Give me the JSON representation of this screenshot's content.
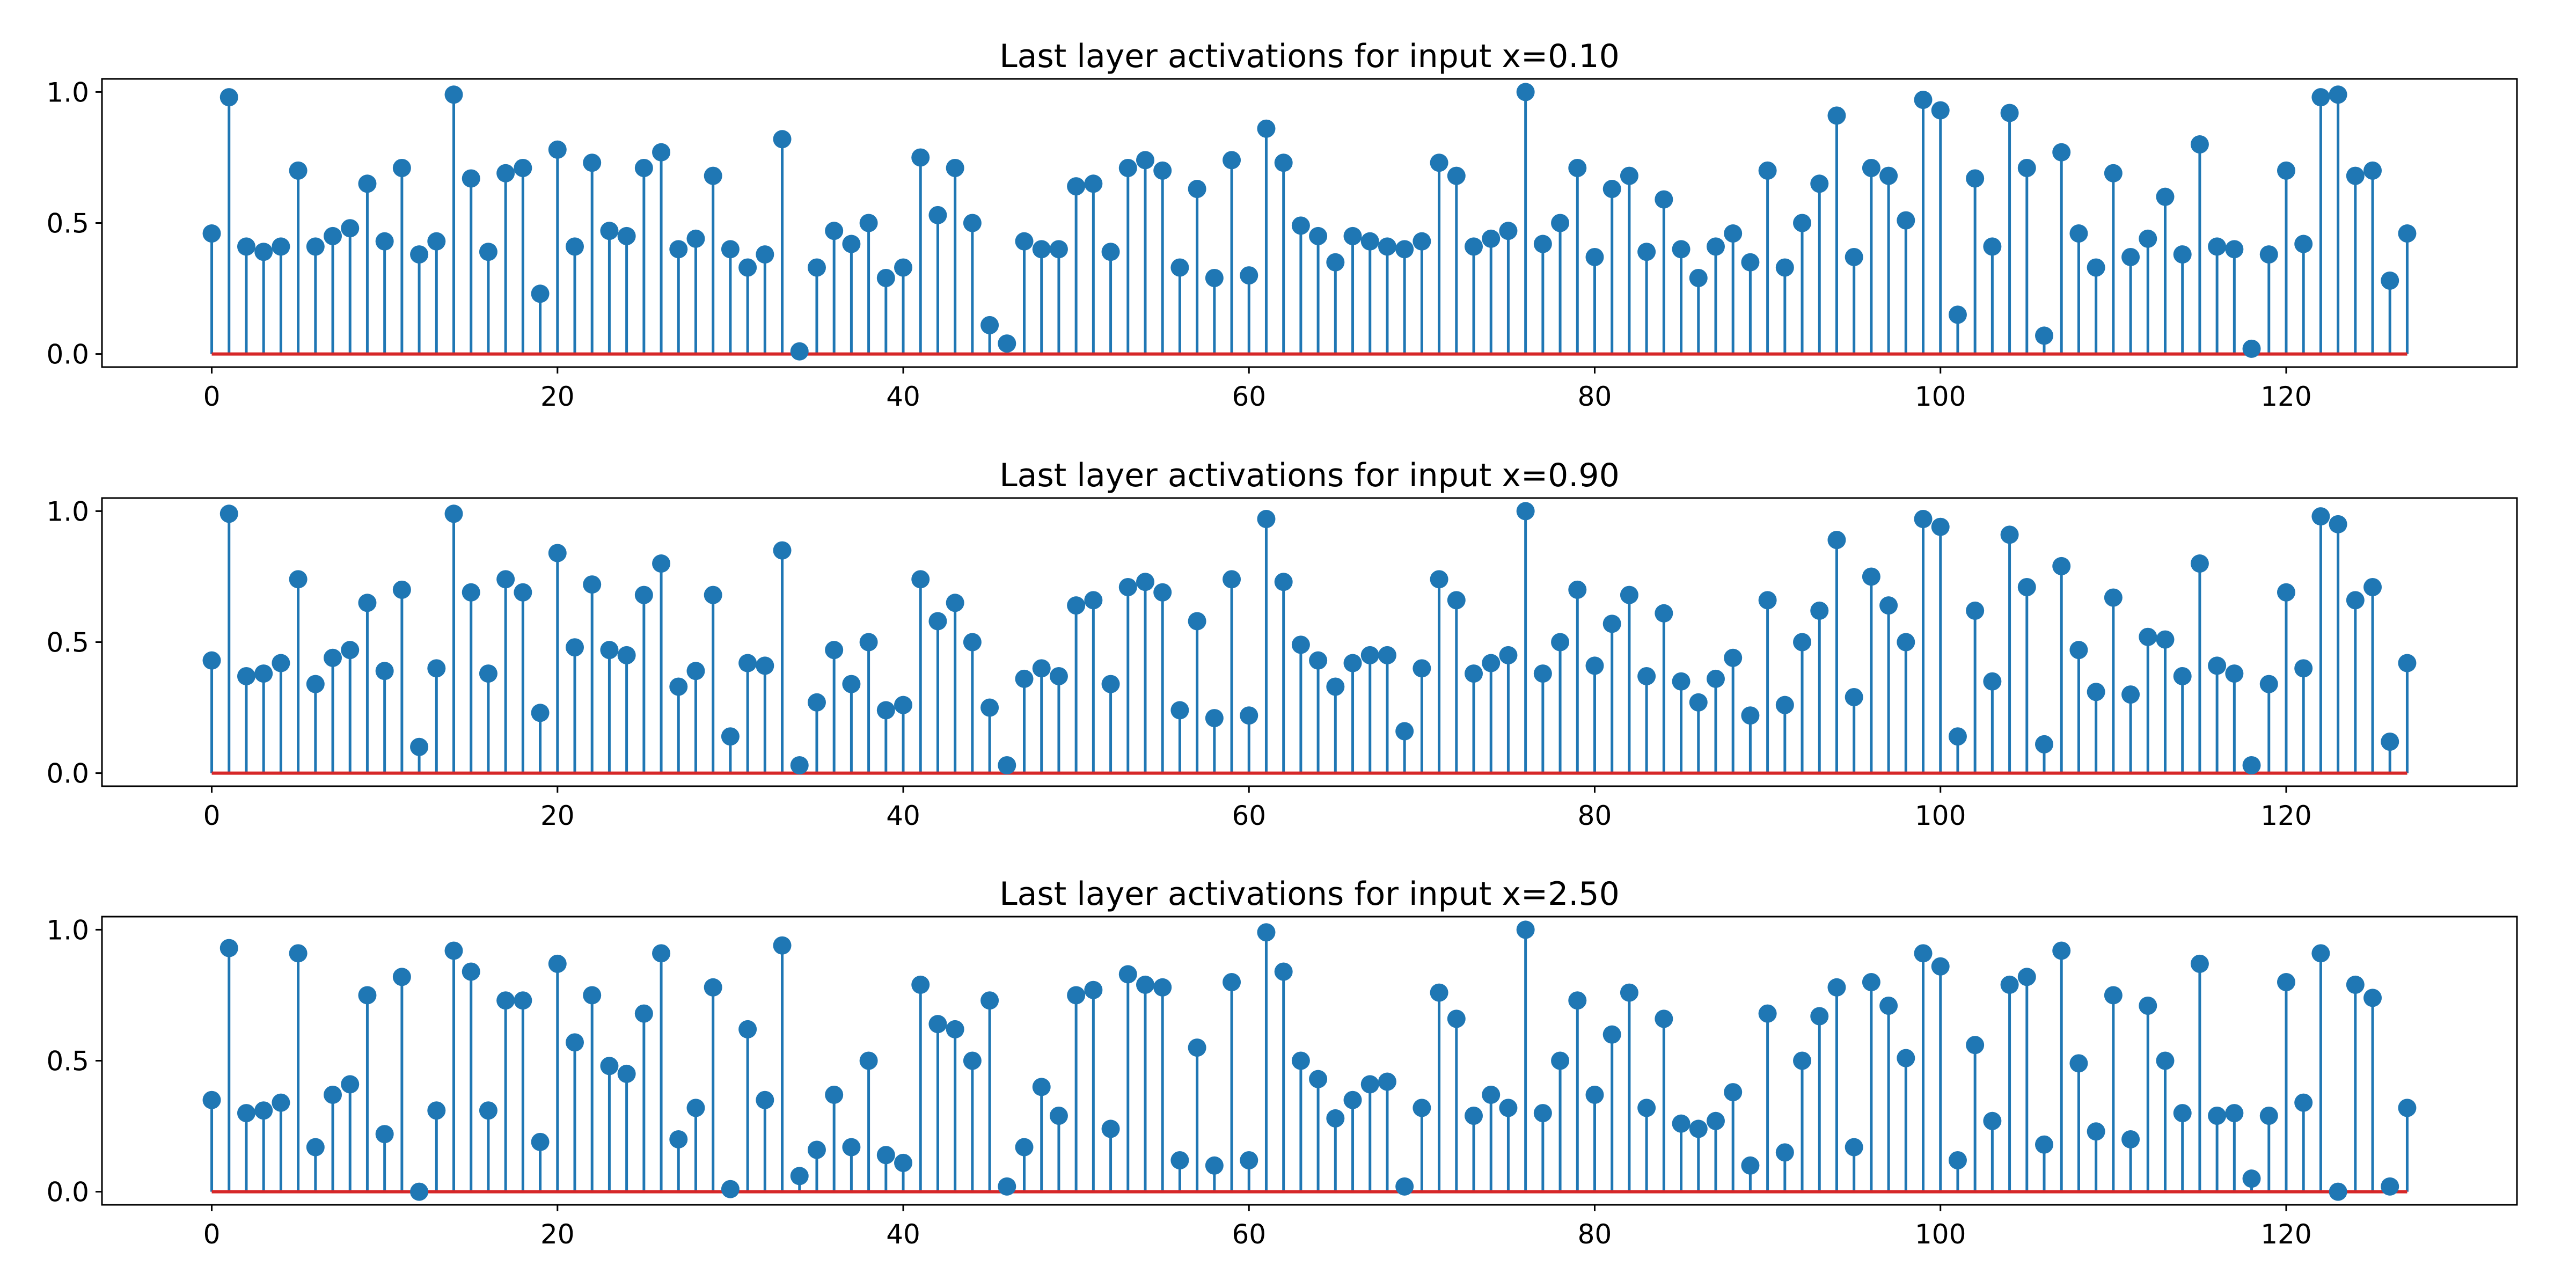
{
  "chart_data": [
    {
      "type": "stem",
      "title": "Last layer activations for input x=0.10",
      "xlim": [
        -6.35,
        133.35
      ],
      "ylim": [
        -0.05,
        1.05
      ],
      "xticks": [
        0,
        20,
        40,
        60,
        80,
        100,
        120
      ],
      "yticks": [
        0.0,
        0.5,
        1.0
      ],
      "ytick_labels": [
        "0.0",
        "0.5",
        "1.0"
      ],
      "grid": false,
      "colors": {
        "stem": "#1f77b4",
        "marker": "#1f77b4",
        "baseline": "#d62728"
      },
      "x": [
        0,
        1,
        2,
        3,
        4,
        5,
        6,
        7,
        8,
        9,
        10,
        11,
        12,
        13,
        14,
        15,
        16,
        17,
        18,
        19,
        20,
        21,
        22,
        23,
        24,
        25,
        26,
        27,
        28,
        29,
        30,
        31,
        32,
        33,
        34,
        35,
        36,
        37,
        38,
        39,
        40,
        41,
        42,
        43,
        44,
        45,
        46,
        47,
        48,
        49,
        50,
        51,
        52,
        53,
        54,
        55,
        56,
        57,
        58,
        59,
        60,
        61,
        62,
        63,
        64,
        65,
        66,
        67,
        68,
        69,
        70,
        71,
        72,
        73,
        74,
        75,
        76,
        77,
        78,
        79,
        80,
        81,
        82,
        83,
        84,
        85,
        86,
        87,
        88,
        89,
        90,
        91,
        92,
        93,
        94,
        95,
        96,
        97,
        98,
        99,
        100,
        101,
        102,
        103,
        104,
        105,
        106,
        107,
        108,
        109,
        110,
        111,
        112,
        113,
        114,
        115,
        116,
        117,
        118,
        119,
        120,
        121,
        122,
        123,
        124,
        125,
        126,
        127
      ],
      "values": [
        0.46,
        0.98,
        0.41,
        0.39,
        0.41,
        0.7,
        0.41,
        0.45,
        0.48,
        0.65,
        0.43,
        0.71,
        0.38,
        0.43,
        0.99,
        0.67,
        0.39,
        0.69,
        0.71,
        0.23,
        0.78,
        0.41,
        0.73,
        0.47,
        0.45,
        0.71,
        0.77,
        0.4,
        0.44,
        0.68,
        0.4,
        0.33,
        0.38,
        0.82,
        0.01,
        0.33,
        0.47,
        0.42,
        0.5,
        0.29,
        0.33,
        0.75,
        0.53,
        0.71,
        0.5,
        0.11,
        0.04,
        0.43,
        0.4,
        0.4,
        0.64,
        0.65,
        0.39,
        0.71,
        0.74,
        0.7,
        0.33,
        0.63,
        0.29,
        0.74,
        0.3,
        0.86,
        0.73,
        0.49,
        0.45,
        0.35,
        0.45,
        0.43,
        0.41,
        0.4,
        0.43,
        0.73,
        0.68,
        0.41,
        0.44,
        0.47,
        1.0,
        0.42,
        0.5,
        0.71,
        0.37,
        0.63,
        0.68,
        0.39,
        0.59,
        0.4,
        0.29,
        0.41,
        0.46,
        0.35,
        0.7,
        0.33,
        0.5,
        0.65,
        0.91,
        0.37,
        0.71,
        0.68,
        0.51,
        0.97,
        0.93,
        0.15,
        0.67,
        0.41,
        0.92,
        0.71,
        0.07,
        0.77,
        0.46,
        0.33,
        0.69,
        0.37,
        0.44,
        0.6,
        0.38,
        0.8,
        0.41,
        0.4,
        0.02,
        0.38,
        0.7,
        0.42,
        0.98,
        0.99,
        0.68,
        0.7,
        0.28,
        0.46
      ]
    },
    {
      "type": "stem",
      "title": "Last layer activations for input x=0.90",
      "xlim": [
        -6.35,
        133.35
      ],
      "ylim": [
        -0.05,
        1.05
      ],
      "xticks": [
        0,
        20,
        40,
        60,
        80,
        100,
        120
      ],
      "yticks": [
        0.0,
        0.5,
        1.0
      ],
      "ytick_labels": [
        "0.0",
        "0.5",
        "1.0"
      ],
      "grid": false,
      "colors": {
        "stem": "#1f77b4",
        "marker": "#1f77b4",
        "baseline": "#d62728"
      },
      "x": [
        0,
        1,
        2,
        3,
        4,
        5,
        6,
        7,
        8,
        9,
        10,
        11,
        12,
        13,
        14,
        15,
        16,
        17,
        18,
        19,
        20,
        21,
        22,
        23,
        24,
        25,
        26,
        27,
        28,
        29,
        30,
        31,
        32,
        33,
        34,
        35,
        36,
        37,
        38,
        39,
        40,
        41,
        42,
        43,
        44,
        45,
        46,
        47,
        48,
        49,
        50,
        51,
        52,
        53,
        54,
        55,
        56,
        57,
        58,
        59,
        60,
        61,
        62,
        63,
        64,
        65,
        66,
        67,
        68,
        69,
        70,
        71,
        72,
        73,
        74,
        75,
        76,
        77,
        78,
        79,
        80,
        81,
        82,
        83,
        84,
        85,
        86,
        87,
        88,
        89,
        90,
        91,
        92,
        93,
        94,
        95,
        96,
        97,
        98,
        99,
        100,
        101,
        102,
        103,
        104,
        105,
        106,
        107,
        108,
        109,
        110,
        111,
        112,
        113,
        114,
        115,
        116,
        117,
        118,
        119,
        120,
        121,
        122,
        123,
        124,
        125,
        126,
        127
      ],
      "values": [
        0.43,
        0.99,
        0.37,
        0.38,
        0.42,
        0.74,
        0.34,
        0.44,
        0.47,
        0.65,
        0.39,
        0.7,
        0.1,
        0.4,
        0.99,
        0.69,
        0.38,
        0.74,
        0.69,
        0.23,
        0.84,
        0.48,
        0.72,
        0.47,
        0.45,
        0.68,
        0.8,
        0.33,
        0.39,
        0.68,
        0.14,
        0.42,
        0.41,
        0.85,
        0.03,
        0.27,
        0.47,
        0.34,
        0.5,
        0.24,
        0.26,
        0.74,
        0.58,
        0.65,
        0.5,
        0.25,
        0.03,
        0.36,
        0.4,
        0.37,
        0.64,
        0.66,
        0.34,
        0.71,
        0.73,
        0.69,
        0.24,
        0.58,
        0.21,
        0.74,
        0.22,
        0.97,
        0.73,
        0.49,
        0.43,
        0.33,
        0.42,
        0.45,
        0.45,
        0.16,
        0.4,
        0.74,
        0.66,
        0.38,
        0.42,
        0.45,
        1.0,
        0.38,
        0.5,
        0.7,
        0.41,
        0.57,
        0.68,
        0.37,
        0.61,
        0.35,
        0.27,
        0.36,
        0.44,
        0.22,
        0.66,
        0.26,
        0.5,
        0.62,
        0.89,
        0.29,
        0.75,
        0.64,
        0.5,
        0.97,
        0.94,
        0.14,
        0.62,
        0.35,
        0.91,
        0.71,
        0.11,
        0.79,
        0.47,
        0.31,
        0.67,
        0.3,
        0.52,
        0.51,
        0.37,
        0.8,
        0.41,
        0.38,
        0.03,
        0.34,
        0.69,
        0.4,
        0.98,
        0.95,
        0.66,
        0.71,
        0.12,
        0.42
      ]
    },
    {
      "type": "stem",
      "title": "Last layer activations for input x=2.50",
      "xlim": [
        -6.35,
        133.35
      ],
      "ylim": [
        -0.05,
        1.05
      ],
      "xticks": [
        0,
        20,
        40,
        60,
        80,
        100,
        120
      ],
      "yticks": [
        0.0,
        0.5,
        1.0
      ],
      "ytick_labels": [
        "0.0",
        "0.5",
        "1.0"
      ],
      "grid": false,
      "colors": {
        "stem": "#1f77b4",
        "marker": "#1f77b4",
        "baseline": "#d62728"
      },
      "x": [
        0,
        1,
        2,
        3,
        4,
        5,
        6,
        7,
        8,
        9,
        10,
        11,
        12,
        13,
        14,
        15,
        16,
        17,
        18,
        19,
        20,
        21,
        22,
        23,
        24,
        25,
        26,
        27,
        28,
        29,
        30,
        31,
        32,
        33,
        34,
        35,
        36,
        37,
        38,
        39,
        40,
        41,
        42,
        43,
        44,
        45,
        46,
        47,
        48,
        49,
        50,
        51,
        52,
        53,
        54,
        55,
        56,
        57,
        58,
        59,
        60,
        61,
        62,
        63,
        64,
        65,
        66,
        67,
        68,
        69,
        70,
        71,
        72,
        73,
        74,
        75,
        76,
        77,
        78,
        79,
        80,
        81,
        82,
        83,
        84,
        85,
        86,
        87,
        88,
        89,
        90,
        91,
        92,
        93,
        94,
        95,
        96,
        97,
        98,
        99,
        100,
        101,
        102,
        103,
        104,
        105,
        106,
        107,
        108,
        109,
        110,
        111,
        112,
        113,
        114,
        115,
        116,
        117,
        118,
        119,
        120,
        121,
        122,
        123,
        124,
        125,
        126,
        127
      ],
      "values": [
        0.35,
        0.93,
        0.3,
        0.31,
        0.34,
        0.91,
        0.17,
        0.37,
        0.41,
        0.75,
        0.22,
        0.82,
        0.0,
        0.31,
        0.92,
        0.84,
        0.31,
        0.73,
        0.73,
        0.19,
        0.87,
        0.57,
        0.75,
        0.48,
        0.45,
        0.68,
        0.91,
        0.2,
        0.32,
        0.78,
        0.01,
        0.62,
        0.35,
        0.94,
        0.06,
        0.16,
        0.37,
        0.17,
        0.5,
        0.14,
        0.11,
        0.79,
        0.64,
        0.62,
        0.5,
        0.73,
        0.02,
        0.17,
        0.4,
        0.29,
        0.75,
        0.77,
        0.24,
        0.83,
        0.79,
        0.78,
        0.12,
        0.55,
        0.1,
        0.8,
        0.12,
        0.99,
        0.84,
        0.5,
        0.43,
        0.28,
        0.35,
        0.41,
        0.42,
        0.02,
        0.32,
        0.76,
        0.66,
        0.29,
        0.37,
        0.32,
        1.0,
        0.3,
        0.5,
        0.73,
        0.37,
        0.6,
        0.76,
        0.32,
        0.66,
        0.26,
        0.24,
        0.27,
        0.38,
        0.1,
        0.68,
        0.15,
        0.5,
        0.67,
        0.78,
        0.17,
        0.8,
        0.71,
        0.51,
        0.91,
        0.86,
        0.12,
        0.56,
        0.27,
        0.79,
        0.82,
        0.18,
        0.92,
        0.49,
        0.23,
        0.75,
        0.2,
        0.71,
        0.5,
        0.3,
        0.87,
        0.29,
        0.3,
        0.05,
        0.29,
        0.8,
        0.34,
        0.91,
        0.0,
        0.79,
        0.74,
        0.02,
        0.32
      ]
    }
  ]
}
